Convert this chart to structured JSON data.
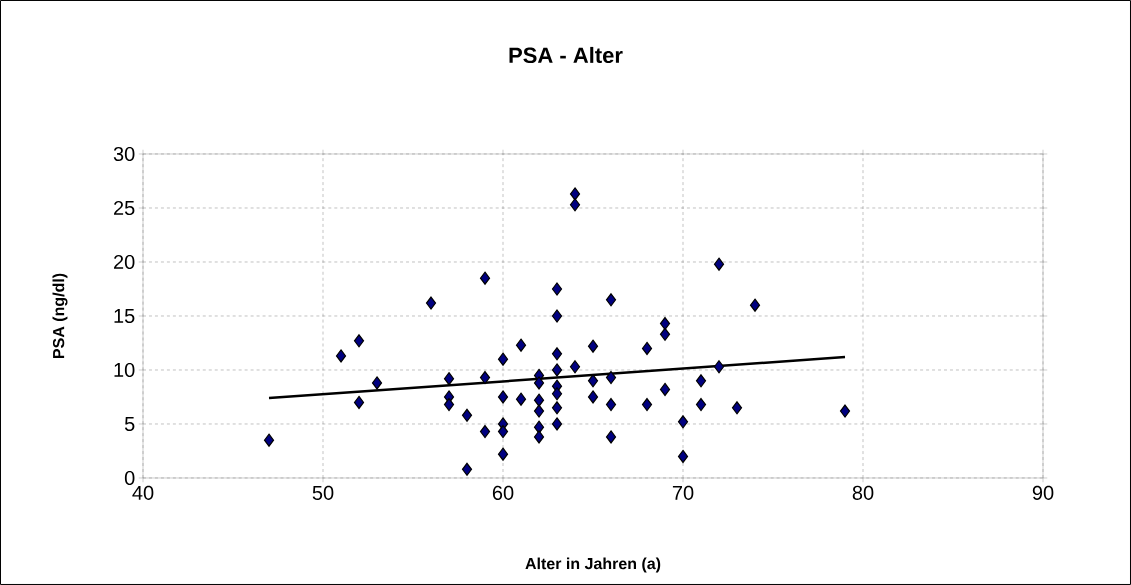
{
  "chart_data": {
    "type": "scatter",
    "title": "PSA - Alter",
    "xlabel": "Alter in Jahren (a)",
    "ylabel": "PSA (ng/dl)",
    "xlim": [
      40,
      90
    ],
    "xticks": [
      40,
      50,
      60,
      70,
      80,
      90
    ],
    "ylim": [
      0,
      30
    ],
    "yticks": [
      0,
      5,
      10,
      15,
      20,
      25,
      30
    ],
    "grid": true,
    "marker": "diamond",
    "series": [
      {
        "color": "#000080",
        "x": [
          47,
          51,
          52,
          52,
          53,
          56,
          57,
          57,
          57,
          58,
          58,
          59,
          59,
          59,
          60,
          60,
          60,
          60,
          60,
          61,
          61,
          62,
          62,
          62,
          62,
          62,
          62,
          63,
          63,
          63,
          63,
          63,
          63,
          63,
          63,
          64,
          64,
          64,
          65,
          65,
          65,
          66,
          66,
          66,
          66,
          68,
          68,
          69,
          69,
          69,
          70,
          70,
          71,
          71,
          72,
          72,
          73,
          74,
          79
        ],
        "values": [
          3.5,
          11.3,
          12.7,
          7,
          8.8,
          16.2,
          9.2,
          7.5,
          6.8,
          5.8,
          0.8,
          18.5,
          9.3,
          4.3,
          11,
          7.5,
          5,
          4.3,
          2.2,
          12.3,
          7.3,
          9.5,
          8.8,
          7.2,
          6.2,
          4.7,
          3.8,
          17.5,
          15,
          11.5,
          10,
          8.5,
          7.8,
          6.5,
          5,
          26.3,
          25.3,
          10.3,
          12.2,
          9,
          7.5,
          16.5,
          9.3,
          6.8,
          3.8,
          12,
          6.8,
          14.3,
          13.3,
          8.2,
          5.2,
          2,
          9,
          6.8,
          19.8,
          10.3,
          6.5,
          16,
          6.2
        ]
      },
      {
        "type": "line",
        "color": "#000000",
        "marker": "none",
        "line_style": "solid",
        "x": [
          47,
          79
        ],
        "values": [
          7.4,
          11.2
        ]
      }
    ]
  }
}
